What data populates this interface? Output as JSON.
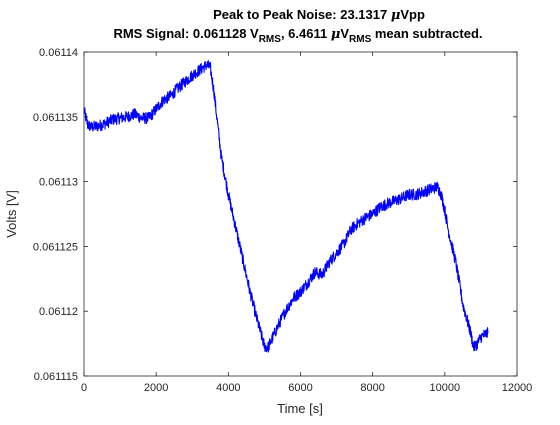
{
  "chart_data": {
    "type": "line",
    "title_line1_prefix": "Peak to Peak Noise: 23.1317 ",
    "title_line1_mu": "μ",
    "title_line1_suffix": "Vpp",
    "title_line2_part1": "RMS Signal: 0.061128 V",
    "title_line2_sub1": "RMS",
    "title_line2_part2": ", 6.4611 ",
    "title_line2_mu": "μ",
    "title_line2_part3": "V",
    "title_line2_sub2": "RMS",
    "title_line2_part4": " mean subtracted.",
    "xlabel": "Time [s]",
    "ylabel": "Volts [V]",
    "xlim": [
      0,
      12000
    ],
    "ylim": [
      0.061115,
      0.06114
    ],
    "xticks": [
      0,
      2000,
      4000,
      6000,
      8000,
      10000,
      12000
    ],
    "xtick_labels": [
      "0",
      "2000",
      "4000",
      "6000",
      "8000",
      "10000",
      "12000"
    ],
    "yticks": [
      0.061115,
      0.06112,
      0.061125,
      0.06113,
      0.061135,
      0.06114
    ],
    "ytick_labels": [
      "0.061115",
      "0.06112",
      "0.061125",
      "0.06113",
      "0.061135",
      "0.06114"
    ],
    "grid": false,
    "series": [
      {
        "color": "#0000ff",
        "noise_amplitude": 4.5e-07,
        "x": [
          0,
          100,
          200,
          400,
          600,
          800,
          1000,
          1200,
          1400,
          1600,
          1800,
          2000,
          2200,
          2400,
          2600,
          2800,
          3000,
          3200,
          3400,
          3500,
          3600,
          3700,
          3800,
          3900,
          4000,
          4200,
          4400,
          4600,
          4800,
          5000,
          5100,
          5200,
          5400,
          5600,
          5800,
          6000,
          6200,
          6400,
          6600,
          6800,
          7000,
          7200,
          7400,
          7600,
          7800,
          8000,
          8200,
          8400,
          8600,
          8800,
          9000,
          9200,
          9400,
          9600,
          9800,
          9900,
          10000,
          10100,
          10200,
          10300,
          10400,
          10500,
          10600,
          10700,
          10800,
          10900,
          11000,
          11100,
          11200
        ],
        "y": [
          0.0611355,
          0.0611344,
          0.0611342,
          0.0611343,
          0.0611345,
          0.0611348,
          0.0611349,
          0.061135,
          0.0611352,
          0.0611349,
          0.0611349,
          0.0611356,
          0.0611363,
          0.0611366,
          0.0611372,
          0.0611377,
          0.0611382,
          0.0611386,
          0.061139,
          0.0611388,
          0.061137,
          0.0611345,
          0.061132,
          0.0611305,
          0.061129,
          0.0611265,
          0.061124,
          0.0611215,
          0.0611193,
          0.0611173,
          0.0611172,
          0.0611178,
          0.061119,
          0.0611201,
          0.061121,
          0.0611215,
          0.0611222,
          0.061123,
          0.0611228,
          0.0611238,
          0.0611245,
          0.0611252,
          0.0611263,
          0.0611268,
          0.0611272,
          0.0611275,
          0.061128,
          0.0611283,
          0.0611285,
          0.0611287,
          0.061129,
          0.061129,
          0.0611292,
          0.0611294,
          0.0611296,
          0.061129,
          0.0611278,
          0.0611262,
          0.061125,
          0.0611238,
          0.0611222,
          0.0611205,
          0.0611195,
          0.0611185,
          0.0611172,
          0.0611175,
          0.061118,
          0.0611182,
          0.0611183
        ]
      }
    ]
  }
}
